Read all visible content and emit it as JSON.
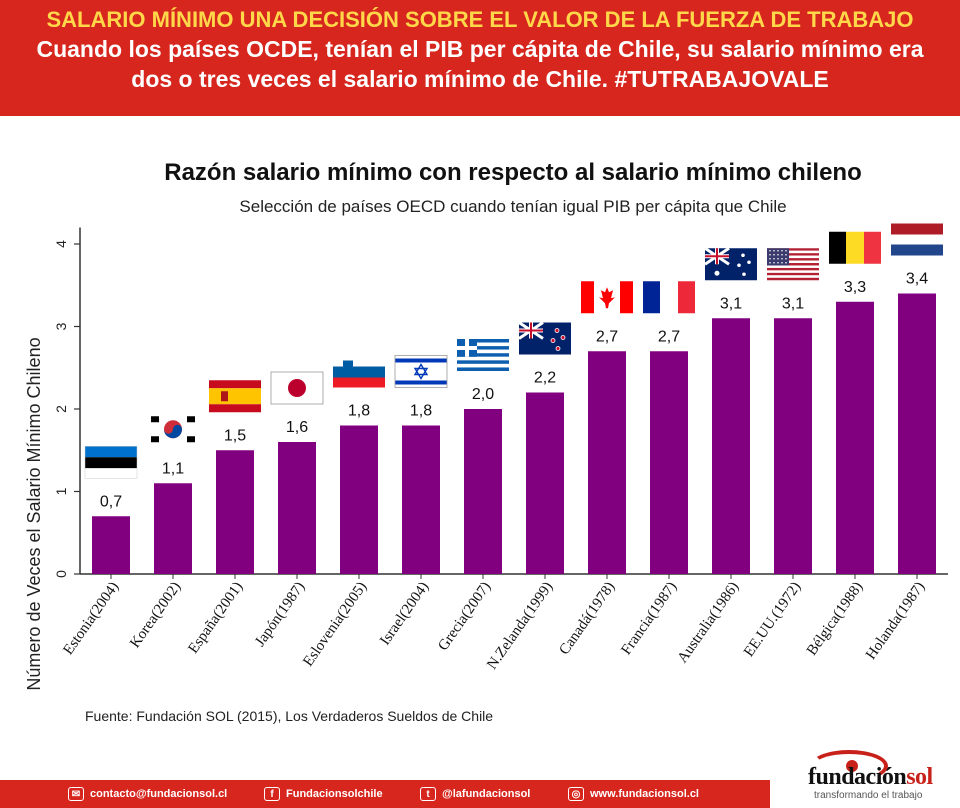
{
  "banner": {
    "line1": "SALARIO MÍNIMO UNA DECISIÓN SOBRE EL VALOR DE LA FUERZA DE TRABAJO",
    "line2": "Cuando los países OCDE, tenían el PIB per cápita de Chile, su salario mínimo era",
    "line3": "dos o tres veces el salario mínimo de Chile. #TUTRABAJOVALE"
  },
  "colors": {
    "banner": "#d7261e",
    "bar": "#800080",
    "title_accent": "#ffd84a"
  },
  "chart_data": {
    "type": "bar",
    "title": "Razón salario mínimo con respecto al salario mínimo chileno",
    "subtitle": "Selección de países OECD cuando tenían igual PIB per cápita que Chile",
    "ylabel": "Número de Veces el Salario Mínimo Chileno",
    "xlabel": "",
    "ylim": [
      0,
      4.2
    ],
    "yticks": [
      "0",
      "1",
      "2",
      "3",
      "4"
    ],
    "grid": false,
    "categories": [
      "Estonia(2004)",
      "Korea(2002)",
      "España(2001)",
      "Japón(1987)",
      "Eslovenia(2005)",
      "Israel(2004)",
      "Grecia(2007)",
      "N.Zelanda(1999)",
      "Canadá(1978)",
      "Francia(1987)",
      "Australia(1986)",
      "EE.UU.(1972)",
      "Bélgica(1988)",
      "Holanda(1987)"
    ],
    "values": [
      0.7,
      1.1,
      1.5,
      1.6,
      1.8,
      1.8,
      2.0,
      2.2,
      2.7,
      2.7,
      3.1,
      3.1,
      3.3,
      3.4
    ],
    "value_labels": [
      "0,7",
      "1,1",
      "1,5",
      "1,6",
      "1,8",
      "1,8",
      "2,0",
      "2,2",
      "2,7",
      "2,7",
      "3,1",
      "3,1",
      "3,3",
      "3,4"
    ],
    "flags": [
      "estonia-flag",
      "korea-flag",
      "spain-flag",
      "japan-flag",
      "slovenia-flag",
      "israel-flag",
      "greece-flag",
      "new-zealand-flag",
      "canada-flag",
      "france-flag",
      "australia-flag",
      "usa-flag",
      "belgium-flag",
      "netherlands-flag"
    ]
  },
  "source": "Fuente: Fundación SOL (2015), Los Verdaderos Sueldos de Chile",
  "footer": {
    "email": "contacto@fundacionsol.cl",
    "facebook": "Fundacionsolchile",
    "twitter": "@lafundacionsol",
    "web": "www.fundacionsol.cl"
  },
  "logo": {
    "name_a": "fundación",
    "name_b": "sol",
    "tagline": "transformando el trabajo"
  }
}
